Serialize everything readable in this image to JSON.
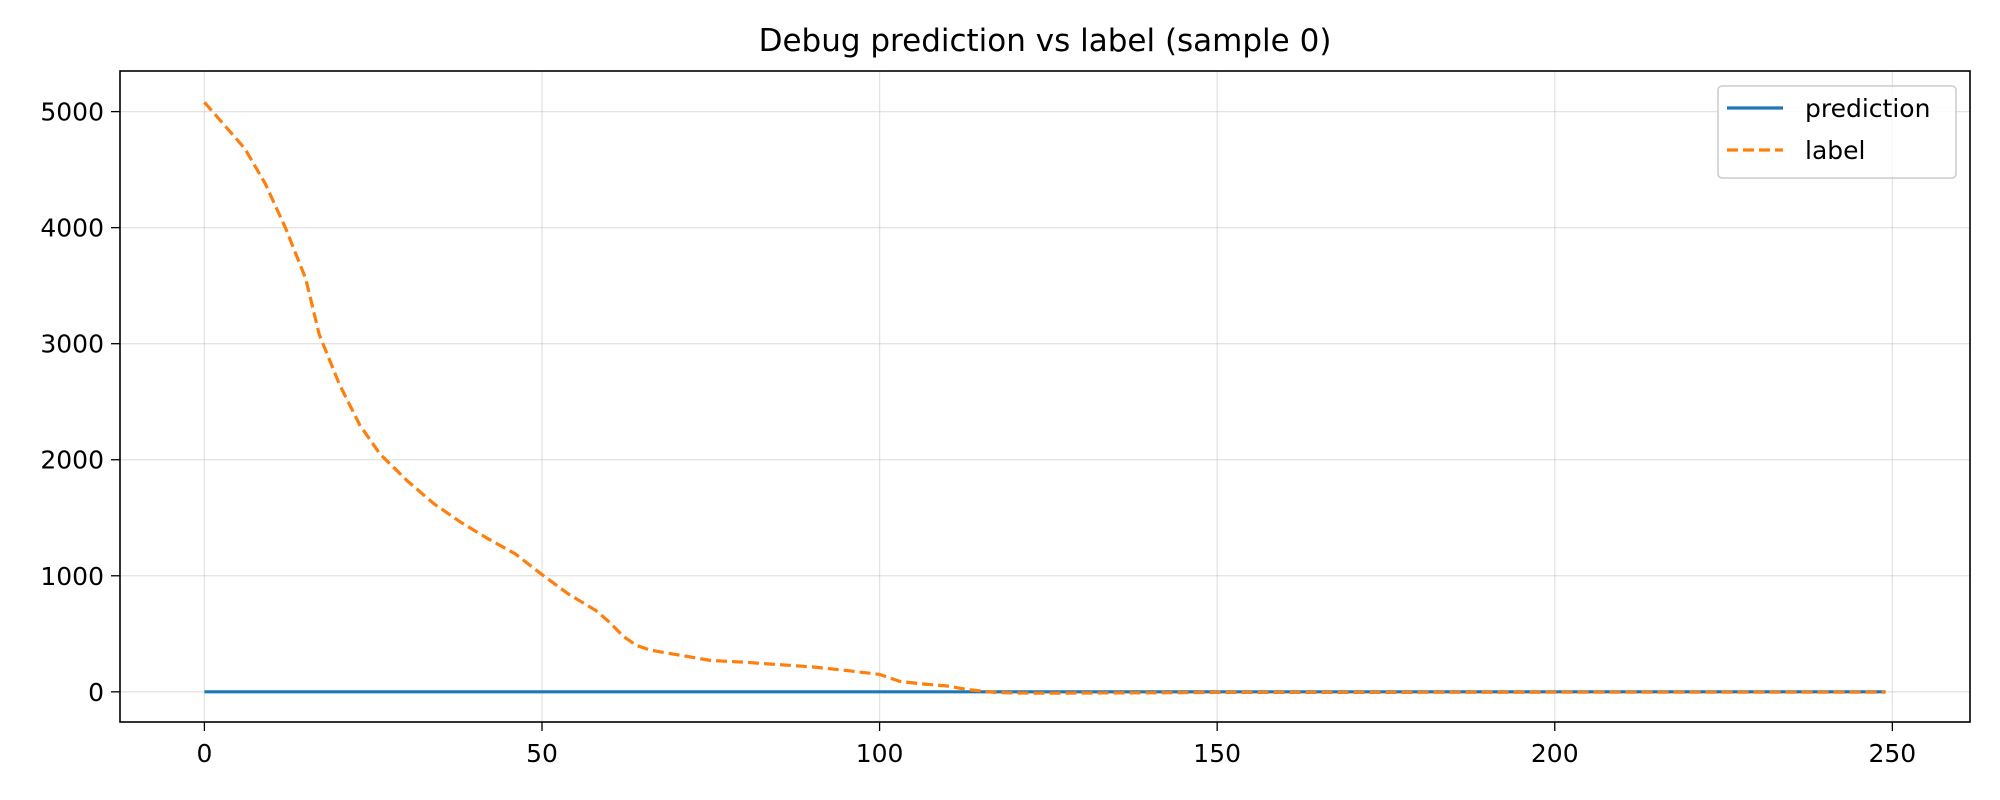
{
  "chart_data": {
    "type": "line",
    "title": "Debug prediction vs label (sample 0)",
    "xlabel": "",
    "ylabel": "",
    "xlim": [
      -12.5,
      261.5
    ],
    "ylim": [
      -260,
      5350
    ],
    "xticks": [
      0,
      50,
      100,
      150,
      200,
      250
    ],
    "yticks": [
      0,
      1000,
      2000,
      3000,
      4000,
      5000
    ],
    "grid": true,
    "legend_position": "top-right",
    "series": [
      {
        "name": "prediction",
        "color": "#1f77b4",
        "dash": "solid",
        "x": [
          0,
          249
        ],
        "y": [
          0,
          0
        ]
      },
      {
        "name": "label",
        "color": "#ff7f0e",
        "dash": "dashed",
        "x": [
          0,
          3,
          6,
          9,
          12,
          15,
          17,
          20,
          23,
          26,
          30,
          34,
          38,
          42,
          46,
          50,
          54,
          58,
          60,
          62,
          64,
          66,
          70,
          75,
          80,
          85,
          90,
          95,
          100,
          103,
          106,
          110,
          113,
          117,
          120,
          125,
          130,
          140,
          150,
          170,
          200,
          230,
          249
        ],
        "y": [
          5080,
          4880,
          4680,
          4380,
          4000,
          3560,
          3080,
          2650,
          2300,
          2050,
          1820,
          1620,
          1460,
          1320,
          1190,
          1010,
          840,
          700,
          600,
          480,
          400,
          360,
          320,
          270,
          255,
          235,
          215,
          185,
          150,
          90,
          70,
          50,
          20,
          -5,
          -10,
          -12,
          -10,
          -8,
          -5,
          -5,
          -3,
          -3,
          -3
        ]
      }
    ]
  }
}
